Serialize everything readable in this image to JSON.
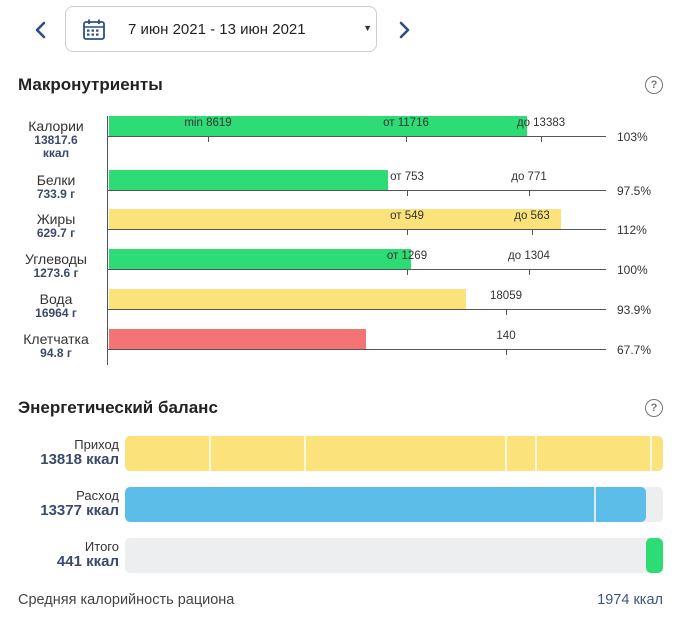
{
  "header": {
    "date_range": "7 июн 2021 - 13 июн 2021",
    "prev_icon": "chevron-left-icon",
    "next_icon": "chevron-right-icon",
    "calendar_icon": "calendar-icon",
    "dropdown_icon": "caret-down-icon"
  },
  "macros": {
    "title": "Макронутриенты",
    "help": "?",
    "rows": [
      {
        "label": "Калории",
        "value": "13817.6",
        "unit": "ккал",
        "percent": "103%",
        "color": "#2edc75",
        "fill_fraction": 0.878,
        "markers": [
          {
            "text": "min 8619",
            "fraction": 0.2
          },
          {
            "text": "от 11716",
            "fraction": 0.598
          },
          {
            "text": "до 13383",
            "fraction": 0.87
          }
        ]
      },
      {
        "label": "Белки",
        "value": "733.9 г",
        "unit": "",
        "percent": "97.5%",
        "color": "#2edc75",
        "fill_fraction": 0.586,
        "markers": [
          {
            "text": "от 753",
            "fraction": 0.6
          },
          {
            "text": "до 771",
            "fraction": 0.845
          }
        ]
      },
      {
        "label": "Жиры",
        "value": "629.7 г",
        "unit": "",
        "percent": "112%",
        "color": "#fbe27a",
        "fill_fraction": 0.95,
        "markers": [
          {
            "text": "от 549",
            "fraction": 0.6
          },
          {
            "text": "до 563",
            "fraction": 0.852
          }
        ]
      },
      {
        "label": "Углеводы",
        "value": "1273.6 г",
        "unit": "",
        "percent": "100%",
        "color": "#2edc75",
        "fill_fraction": 0.635,
        "markers": [
          {
            "text": "от 1269",
            "fraction": 0.6
          },
          {
            "text": "до 1304",
            "fraction": 0.845
          }
        ]
      },
      {
        "label": "Вода",
        "value": "16964 г",
        "unit": "",
        "percent": "93.9%",
        "color": "#fbe27a",
        "fill_fraction": 0.75,
        "markers": [
          {
            "text": "18059",
            "fraction": 0.8
          }
        ]
      },
      {
        "label": "Клетчатка",
        "value": "94.8 г",
        "unit": "",
        "percent": "67.7%",
        "color": "#f47474",
        "fill_fraction": 0.54,
        "markers": [
          {
            "text": "140",
            "fraction": 0.8
          }
        ]
      }
    ]
  },
  "energy": {
    "title": "Энергетический баланс",
    "help": "?",
    "rows": [
      {
        "label": "Приход",
        "value": "13818 ккал",
        "color": "#fbe27a",
        "fill_fraction": 1.0,
        "segments": [
          0.156,
          0.333,
          0.706,
          0.762,
          0.975
        ]
      },
      {
        "label": "Расход",
        "value": "13377 ккал",
        "color": "#5cbde9",
        "fill_fraction": 0.968,
        "segments": [
          0.872
        ]
      },
      {
        "label": "Итого",
        "value": "441 ккал",
        "color": "#2edc75",
        "fill_fraction": 0.032,
        "align": "right",
        "segments": []
      }
    ]
  },
  "footer": {
    "label": "Средняя калорийность рациона",
    "value": "1974 ккал"
  }
}
